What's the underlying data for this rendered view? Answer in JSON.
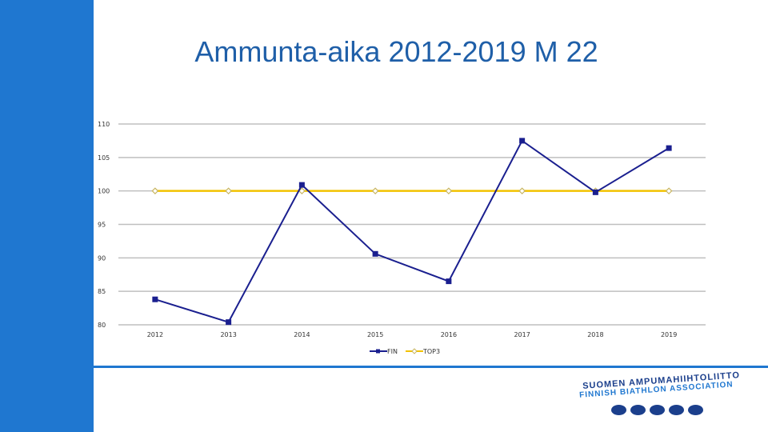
{
  "title": "Ammunta-aika 2012-2019 M 22",
  "colors": {
    "sidebar": "#1f77d0",
    "fin": "#1a1f8f",
    "top3": "#f2c200",
    "top3_marker": "#c8b560",
    "grid": "#bfbfbf"
  },
  "logo": {
    "line1": "SUOMEN AMPUMAHIIHTOLIITTO",
    "line2": "FINNISH BIATHLON ASSOCIATION"
  },
  "chart_data": {
    "type": "line",
    "categories": [
      "2012",
      "2013",
      "2014",
      "2015",
      "2016",
      "2017",
      "2018",
      "2019"
    ],
    "ylim": [
      80,
      110
    ],
    "yticks": [
      "80",
      "85",
      "90",
      "95",
      "100",
      "105",
      "110"
    ],
    "grid": true,
    "legend_position": "bottom",
    "series": [
      {
        "name": "FIN",
        "values": [
          83.8,
          80.4,
          100.9,
          90.6,
          86.5,
          107.5,
          99.8,
          106.4
        ]
      },
      {
        "name": "TOP3",
        "values": [
          100,
          100,
          100,
          100,
          100,
          100,
          100,
          100
        ]
      }
    ]
  }
}
